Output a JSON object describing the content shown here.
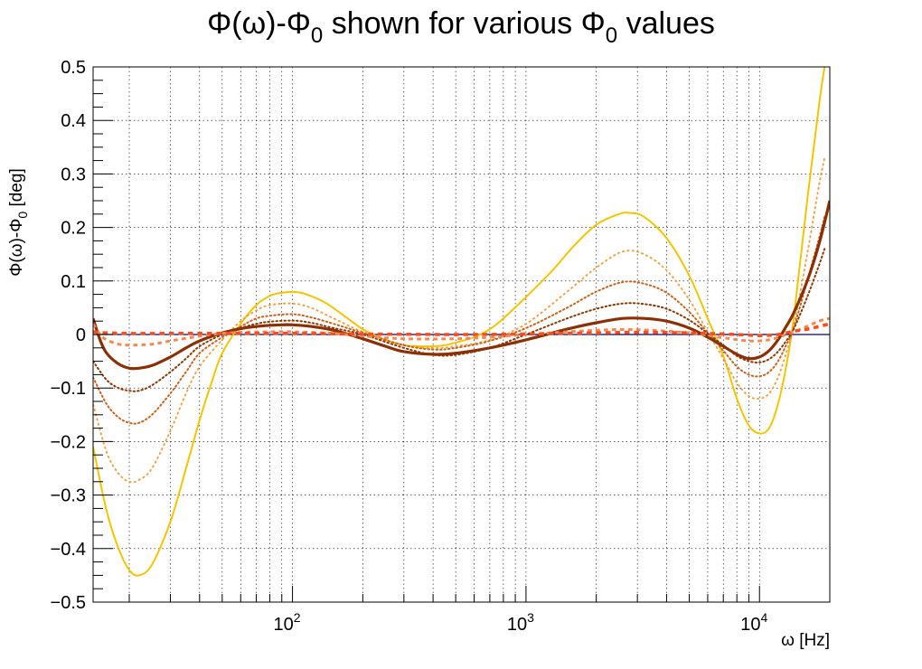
{
  "chart_data": {
    "type": "line",
    "title": {
      "pre": "Φ(ω)-Φ",
      "sub": "0",
      "post": " shown for various Φ",
      "sub2": "0",
      "end": " values"
    },
    "xlabel": "ω [Hz]",
    "ylabel": {
      "pre": "Φ(ω)-Φ",
      "sub": "0",
      "post": " [deg]"
    },
    "x_scale": "log",
    "xlim": [
      14,
      20000
    ],
    "ylim": [
      -0.5,
      0.5
    ],
    "grid": true,
    "x_ticks": [
      {
        "base": "10",
        "exp": "2",
        "value": 100
      },
      {
        "base": "10",
        "exp": "3",
        "value": 1000
      },
      {
        "base": "10",
        "exp": "4",
        "value": 10000
      }
    ],
    "y_ticks": [
      "0.5",
      "0.4",
      "0.3",
      "0.2",
      "0.1",
      "0",
      "−0.1",
      "−0.2",
      "−0.3",
      "−0.4",
      "−0.5"
    ],
    "y_tick_values": [
      0.5,
      0.4,
      0.3,
      0.2,
      0.1,
      0,
      -0.1,
      -0.2,
      -0.3,
      -0.4,
      -0.5
    ],
    "x_grid_minor": true,
    "reference_line": {
      "y": 0,
      "color": "#000080"
    },
    "series": [
      {
        "color": "#f2c500",
        "style": "solid",
        "width": 2,
        "x": [
          14,
          16,
          18,
          20,
          22,
          25,
          30,
          35,
          40,
          45,
          50,
          60,
          70,
          80,
          90,
          105,
          120,
          140,
          170,
          200,
          250,
          300,
          350,
          400,
          450,
          500,
          600,
          700,
          800,
          1000,
          1300,
          1600,
          2000,
          2500,
          2800,
          3200,
          4000,
          5000,
          6000,
          7000,
          8000,
          9000,
          10000,
          11000,
          12000,
          13000,
          14000,
          16000,
          18000,
          19000
        ],
        "y": [
          -0.21,
          -0.33,
          -0.4,
          -0.44,
          -0.45,
          -0.43,
          -0.35,
          -0.25,
          -0.16,
          -0.09,
          -0.035,
          0.02,
          0.055,
          0.072,
          0.078,
          0.079,
          0.072,
          0.058,
          0.032,
          0.01,
          -0.01,
          -0.02,
          -0.022,
          -0.022,
          -0.02,
          -0.015,
          -0.005,
          0.01,
          0.03,
          0.07,
          0.12,
          0.165,
          0.205,
          0.225,
          0.227,
          0.22,
          0.18,
          0.11,
          0.03,
          -0.04,
          -0.12,
          -0.17,
          -0.185,
          -0.175,
          -0.13,
          -0.06,
          0.03,
          0.25,
          0.43,
          0.5
        ]
      },
      {
        "color": "#f39c3a",
        "style": "dashed",
        "width": 1.8,
        "x": [
          14,
          16,
          18,
          20,
          22,
          25,
          30,
          35,
          40,
          50,
          60,
          70,
          80,
          100,
          120,
          150,
          200,
          300,
          400,
          500,
          700,
          1000,
          1500,
          2000,
          2600,
          3200,
          4000,
          5000,
          6000,
          7000,
          8000,
          9000,
          10000,
          11000,
          12000,
          13000,
          14000,
          16000,
          18000,
          19000
        ],
        "y": [
          -0.13,
          -0.22,
          -0.26,
          -0.275,
          -0.272,
          -0.25,
          -0.18,
          -0.11,
          -0.06,
          -0.01,
          0.025,
          0.045,
          0.055,
          0.058,
          0.05,
          0.03,
          0.005,
          -0.02,
          -0.025,
          -0.022,
          -0.01,
          0.02,
          0.08,
          0.125,
          0.155,
          0.15,
          0.12,
          0.065,
          0.005,
          -0.045,
          -0.09,
          -0.115,
          -0.12,
          -0.11,
          -0.08,
          -0.035,
          0.015,
          0.15,
          0.28,
          0.33
        ]
      },
      {
        "color": "#c8641c",
        "style": "dotted",
        "width": 2,
        "x": [
          14,
          16,
          18,
          20,
          22,
          25,
          30,
          35,
          40,
          50,
          60,
          70,
          80,
          100,
          120,
          150,
          200,
          300,
          400,
          500,
          700,
          1000,
          1500,
          2000,
          2600,
          3200,
          4000,
          5000,
          6000,
          7000,
          8000,
          9000,
          10000,
          11000,
          12000,
          13000,
          14000,
          16000,
          18000,
          19000
        ],
        "y": [
          -0.08,
          -0.13,
          -0.155,
          -0.165,
          -0.165,
          -0.15,
          -0.11,
          -0.07,
          -0.035,
          -0.005,
          0.015,
          0.03,
          0.035,
          0.038,
          0.032,
          0.02,
          0.003,
          -0.02,
          -0.028,
          -0.025,
          -0.012,
          0.012,
          0.05,
          0.08,
          0.098,
          0.095,
          0.078,
          0.042,
          0.003,
          -0.03,
          -0.06,
          -0.075,
          -0.078,
          -0.07,
          -0.05,
          -0.02,
          0.012,
          0.1,
          0.18,
          0.22
        ]
      },
      {
        "color": "#8a3a06",
        "style": "dotted",
        "width": 2,
        "x": [
          14,
          16,
          18,
          20,
          22,
          25,
          30,
          35,
          40,
          50,
          60,
          70,
          80,
          100,
          120,
          150,
          200,
          300,
          400,
          500,
          700,
          1000,
          1500,
          2000,
          2600,
          3200,
          4000,
          5000,
          6000,
          7000,
          8000,
          9000,
          10000,
          11000,
          12000,
          13000,
          14000,
          16000,
          18000,
          19000
        ],
        "y": [
          -0.05,
          -0.085,
          -0.1,
          -0.105,
          -0.105,
          -0.095,
          -0.07,
          -0.045,
          -0.022,
          0.0,
          0.012,
          0.02,
          0.024,
          0.026,
          0.022,
          0.012,
          0.0,
          -0.025,
          -0.038,
          -0.038,
          -0.025,
          0.0,
          0.03,
          0.048,
          0.058,
          0.057,
          0.048,
          0.027,
          0.002,
          -0.02,
          -0.04,
          -0.05,
          -0.052,
          -0.046,
          -0.032,
          -0.012,
          0.01,
          0.07,
          0.13,
          0.16
        ]
      },
      {
        "color": "#8b3005",
        "style": "solid",
        "width": 3.2,
        "x": [
          14,
          15,
          16,
          18,
          20,
          22,
          25,
          30,
          35,
          40,
          50,
          60,
          70,
          80,
          90,
          100,
          120,
          150,
          200,
          250,
          300,
          400,
          500,
          700,
          1000,
          1500,
          2000,
          2600,
          3200,
          4000,
          5000,
          6000,
          7000,
          8000,
          9000,
          10000,
          11000,
          12000,
          13000,
          14000,
          16000,
          18000,
          20000
        ],
        "y": [
          0.03,
          -0.01,
          -0.035,
          -0.055,
          -0.063,
          -0.063,
          -0.058,
          -0.042,
          -0.025,
          -0.012,
          0.003,
          0.011,
          0.015,
          0.017,
          0.018,
          0.018,
          0.015,
          0.008,
          -0.008,
          -0.022,
          -0.032,
          -0.037,
          -0.035,
          -0.025,
          -0.01,
          0.01,
          0.022,
          0.03,
          0.03,
          0.025,
          0.012,
          -0.005,
          -0.022,
          -0.037,
          -0.045,
          -0.042,
          -0.03,
          -0.01,
          0.015,
          0.04,
          0.1,
          0.17,
          0.25
        ]
      },
      {
        "color": "#f08a50",
        "style": "dashed",
        "width": 3,
        "x": [
          14,
          15,
          16,
          18,
          20,
          25,
          30,
          40,
          50,
          60,
          80,
          100,
          150,
          200,
          300,
          500,
          700,
          1000,
          2000,
          3000,
          5000,
          7000,
          9000,
          11000,
          13000,
          15000,
          18000,
          20000
        ],
        "y": [
          0.02,
          0.0,
          -0.01,
          -0.018,
          -0.02,
          -0.018,
          -0.012,
          -0.003,
          0.002,
          0.004,
          0.005,
          0.005,
          0.002,
          -0.003,
          -0.008,
          -0.008,
          -0.005,
          0.0,
          0.008,
          0.009,
          0.003,
          -0.006,
          -0.012,
          -0.01,
          0.0,
          0.01,
          0.025,
          0.03
        ]
      },
      {
        "color": "#ff4c1a",
        "style": "dashed",
        "width": 3.5,
        "x": [
          14,
          16,
          20,
          30,
          50,
          100,
          200,
          500,
          1000,
          2000,
          3000,
          5000,
          8000,
          10000,
          12000,
          14000,
          16000,
          18000,
          20000
        ],
        "y": [
          0.005,
          0.003,
          0.002,
          0.002,
          0.002,
          0.002,
          0.001,
          0.0,
          0.001,
          0.003,
          0.004,
          0.003,
          0.0,
          -0.002,
          0.0,
          0.006,
          0.01,
          0.015,
          0.02
        ]
      }
    ]
  }
}
